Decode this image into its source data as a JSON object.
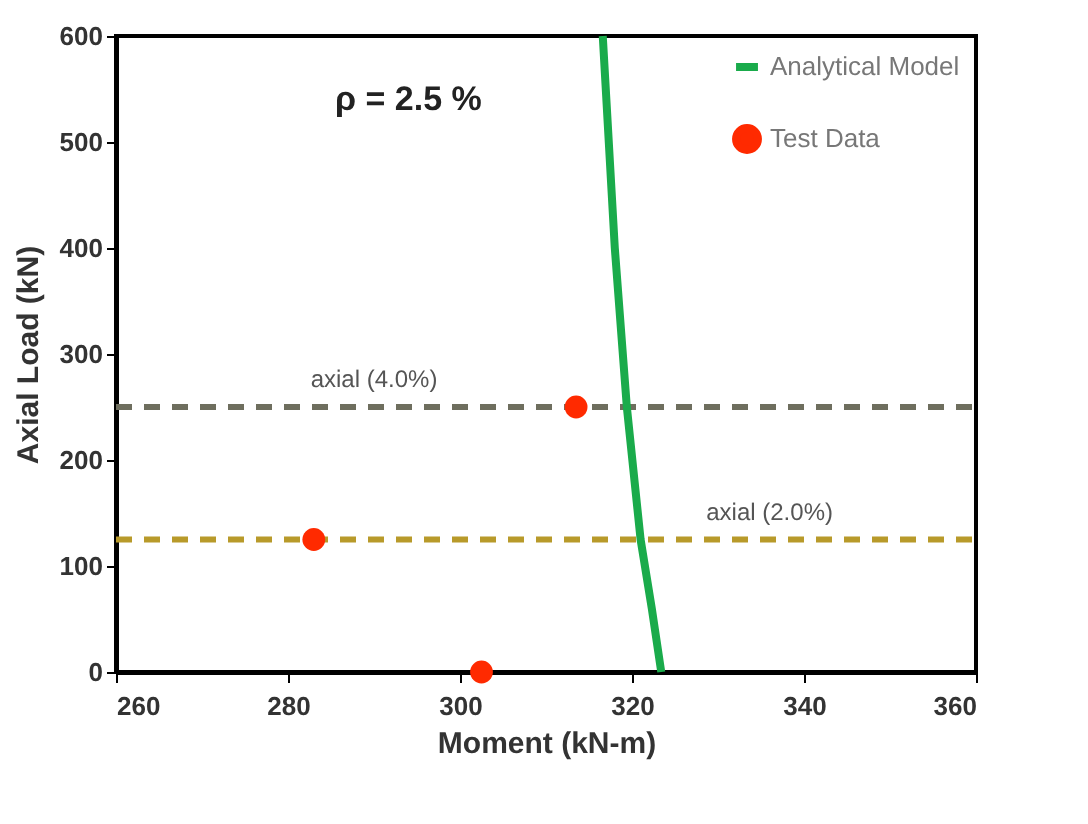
{
  "chart_data": {
    "type": "scatter",
    "xlabel": "Moment (kN-m)",
    "ylabel": "Axial Load (kN)",
    "xlim": [
      260,
      360
    ],
    "xticks": [
      260,
      280,
      300,
      320,
      340,
      360
    ],
    "ylim": [
      0,
      600
    ],
    "yticks": [
      0,
      100,
      200,
      300,
      400,
      500,
      600
    ],
    "grid": false,
    "legend": "top right",
    "annotations": [
      "ρ = 2.5 %"
    ],
    "ref_lines": [
      {
        "axis": "y",
        "value": 250,
        "label": "axial (4.0%)",
        "color": "#6e6e5e",
        "line_style": "dashed"
      },
      {
        "axis": "y",
        "value": 125,
        "label": "axial (2.0%)",
        "color": "#b89a2a",
        "line_style": "dashed"
      }
    ],
    "series": [
      {
        "name": "Analytical Model",
        "type": "line",
        "color": "#1aab4b",
        "marker": "none",
        "line_style": "solid",
        "x": [
          323.4,
          322.3,
          321.0,
          319.4,
          318.0,
          316.6
        ],
        "values": [
          0,
          60,
          125,
          250,
          400,
          600
        ]
      },
      {
        "name": "Test Data",
        "color": "#ff2a00",
        "marker": "circle",
        "x": [
          283,
          302.5,
          313.5
        ],
        "values": [
          125,
          0,
          250
        ]
      }
    ]
  }
}
